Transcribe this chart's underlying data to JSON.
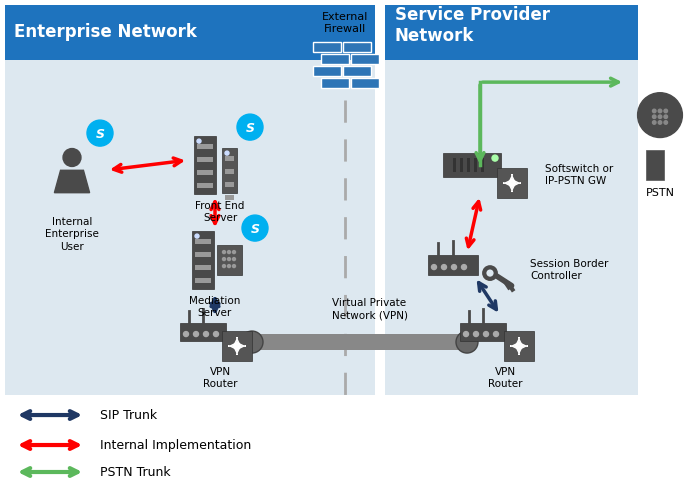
{
  "bg_color": "#dde8f0",
  "blue_header": "#1e73be",
  "enterprise_label": "Enterprise Network",
  "provider_label": "Service Provider\nNetwork",
  "firewall_label": "External\nFirewall",
  "arrow_dark_blue": "#1f3864",
  "arrow_red": "#ff0000",
  "arrow_green": "#5cb85c",
  "skype_color": "#00b0f0",
  "firewall_color": "#2e75b6",
  "icon_color": "#4a4a4a",
  "legend": [
    {
      "color": "#1f3864",
      "label": "SIP Trunk"
    },
    {
      "color": "#ff0000",
      "label": "Internal Implementation"
    },
    {
      "color": "#5cb85c",
      "label": "PSTN Trunk"
    }
  ]
}
